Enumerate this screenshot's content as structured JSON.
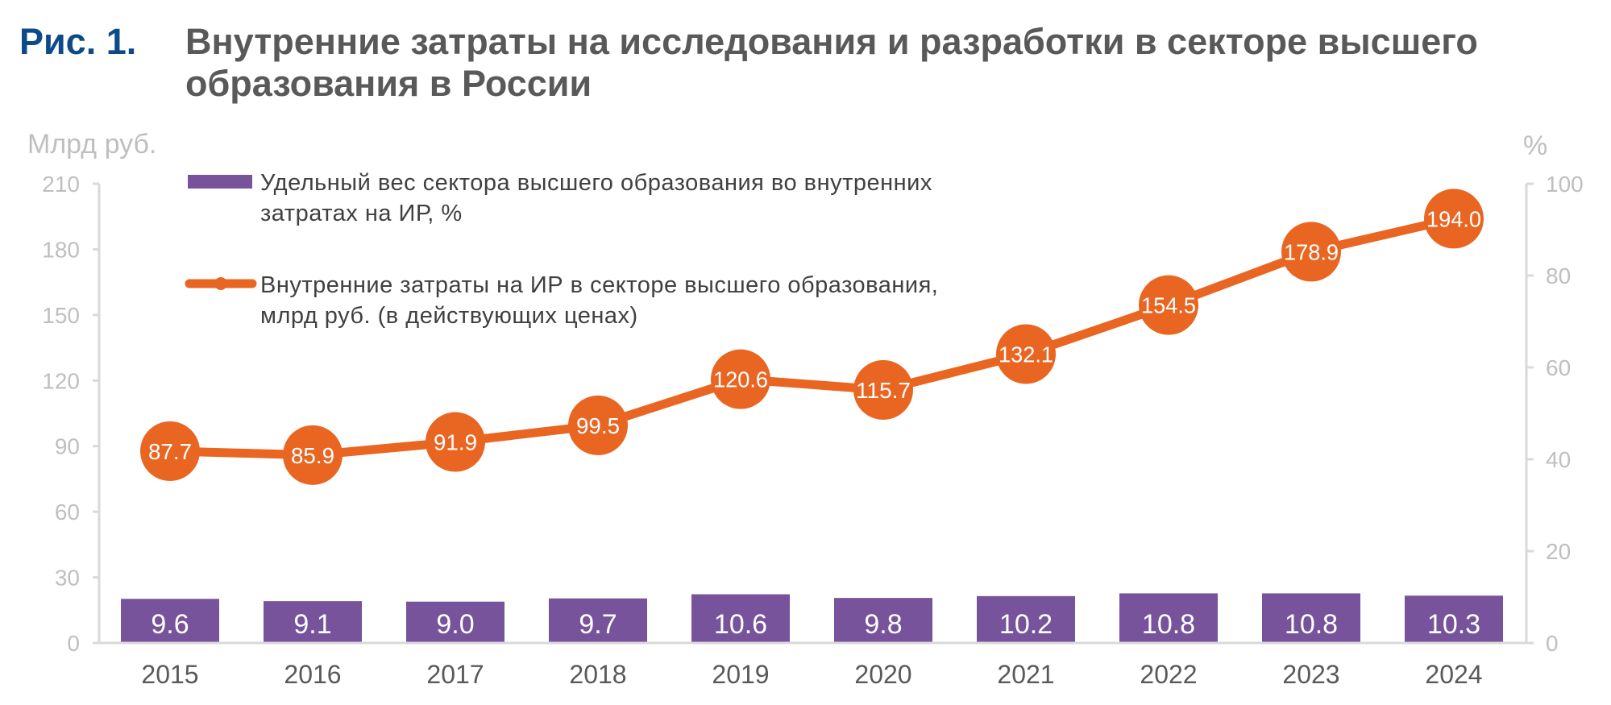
{
  "figure": {
    "label": "Рис. 1.",
    "title": "Внутренние затраты на исследования и разработки в секторе высшего образования в России"
  },
  "colors": {
    "bar": "#76539a",
    "line": "#e96622",
    "axis": "#d9d9d9",
    "tick_text": "#bfbfbf",
    "category_text": "#595959",
    "title_label": "#0c4a8a",
    "title_text": "#595959"
  },
  "chart_data": {
    "type": "bar+line",
    "title": "Внутренние затраты на исследования и разработки в секторе высшего образования в России",
    "categories": [
      "2015",
      "2016",
      "2017",
      "2018",
      "2019",
      "2020",
      "2021",
      "2022",
      "2023",
      "2024"
    ],
    "series": [
      {
        "name": "Удельный вес сектора высшего образования во внутренних затратах на ИР, %",
        "type": "bar",
        "axis": "right",
        "values": [
          9.6,
          9.1,
          9.0,
          9.7,
          10.6,
          9.8,
          10.2,
          10.8,
          10.8,
          10.3
        ],
        "labels": [
          "9.6",
          "9.1",
          "9.0",
          "9.7",
          "10.6",
          "9.8",
          "10.2",
          "10.8",
          "10.8",
          "10.3"
        ]
      },
      {
        "name": "Внутренние затраты  на ИР в секторе высшего образования, млрд руб. (в действующих ценах)",
        "type": "line",
        "axis": "left",
        "values": [
          87.7,
          85.9,
          91.9,
          99.5,
          120.6,
          115.7,
          132.1,
          154.5,
          178.9,
          194.0
        ],
        "labels": [
          "87.7",
          "85.9",
          "91.9",
          "99.5",
          "120.6",
          "115.7",
          "132.1",
          "154.5",
          "178.9",
          "194.0"
        ]
      }
    ],
    "y_left": {
      "label": "Млрд руб.",
      "range": [
        0,
        210
      ],
      "ticks": [
        0,
        30,
        60,
        90,
        120,
        150,
        180,
        210
      ]
    },
    "y_right": {
      "label": "%",
      "range": [
        0,
        100
      ],
      "ticks": [
        0,
        20,
        40,
        60,
        80,
        100
      ]
    },
    "legend": {
      "placement": "top-left",
      "entries": [
        {
          "marker": "bar",
          "line1": "Удельный вес сектора высшего образования во внутренних",
          "line2": "затратах на ИР, %"
        },
        {
          "marker": "line",
          "line1": "Внутренние затраты  на ИР в секторе высшего образования,",
          "line2": "млрд руб. (в действующих ценах)"
        }
      ]
    },
    "grid": false
  }
}
